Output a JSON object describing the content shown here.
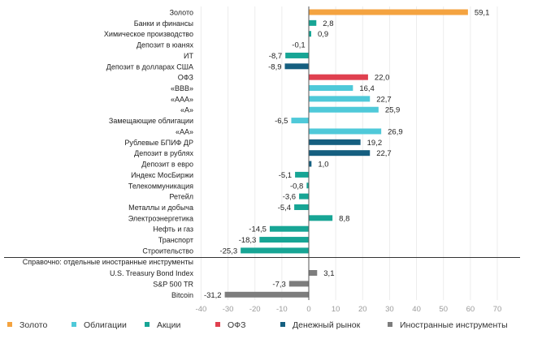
{
  "chart_data": {
    "type": "bar",
    "orientation": "horizontal",
    "xlim": [
      -40,
      70
    ],
    "xticks": [
      -40,
      -30,
      -20,
      -10,
      0,
      10,
      20,
      30,
      40,
      50,
      60,
      70
    ],
    "grid": true,
    "legend_position": "bottom",
    "colors": {
      "gold": "#f4a340",
      "bonds": "#4fc9d9",
      "stocks": "#17a595",
      "ofz": "#e0404f",
      "money": "#155f80",
      "foreign": "#7d7d7d"
    },
    "legend": [
      {
        "key": "gold",
        "label": "Золото"
      },
      {
        "key": "bonds",
        "label": "Облигации"
      },
      {
        "key": "stocks",
        "label": "Акции"
      },
      {
        "key": "ofz",
        "label": "ОФЗ"
      },
      {
        "key": "money",
        "label": "Денежный рынок"
      },
      {
        "key": "foreign",
        "label": "Иностранные инструменты"
      }
    ],
    "bars": [
      {
        "label": "Золото",
        "value": 59.1,
        "value_label": "59,1",
        "group": "gold"
      },
      {
        "label": "Банки и финансы",
        "value": 2.8,
        "value_label": "2,8",
        "group": "stocks"
      },
      {
        "label": "Химическое производство",
        "value": 0.9,
        "value_label": "0,9",
        "group": "stocks"
      },
      {
        "label": "Депозит в юанях",
        "value": -0.1,
        "value_label": "-0,1",
        "group": "money"
      },
      {
        "label": "ИТ",
        "value": -8.7,
        "value_label": "-8,7",
        "group": "stocks"
      },
      {
        "label": "Депозит в долларах США",
        "value": -8.9,
        "value_label": "-8,9",
        "group": "money"
      },
      {
        "label": "ОФЗ",
        "value": 22.0,
        "value_label": "22,0",
        "group": "ofz"
      },
      {
        "label": "«BBB»",
        "value": 16.4,
        "value_label": "16,4",
        "group": "bonds"
      },
      {
        "label": "«AAA»",
        "value": 22.7,
        "value_label": "22,7",
        "group": "bonds"
      },
      {
        "label": "«A»",
        "value": 25.9,
        "value_label": "25,9",
        "group": "bonds"
      },
      {
        "label": "Замещающие облигации",
        "value": -6.5,
        "value_label": "-6,5",
        "group": "bonds"
      },
      {
        "label": "«AA»",
        "value": 26.9,
        "value_label": "26,9",
        "group": "bonds"
      },
      {
        "label": "Рублевые БПИФ ДР",
        "value": 19.2,
        "value_label": "19,2",
        "group": "money"
      },
      {
        "label": "Депозит в рублях",
        "value": 22.7,
        "value_label": "22,7",
        "group": "money"
      },
      {
        "label": "Депозит в евро",
        "value": 1.0,
        "value_label": "1,0",
        "group": "money"
      },
      {
        "label": "Индекс МосБиржи",
        "value": -5.1,
        "value_label": "-5,1",
        "group": "stocks"
      },
      {
        "label": "Телекоммуникация",
        "value": -0.8,
        "value_label": "-0,8",
        "group": "stocks"
      },
      {
        "label": "Ретейл",
        "value": -3.6,
        "value_label": "-3,6",
        "group": "stocks"
      },
      {
        "label": "Металлы и добыча",
        "value": -5.4,
        "value_label": "-5,4",
        "group": "stocks"
      },
      {
        "label": "Электроэнергетика",
        "value": 8.8,
        "value_label": "8,8",
        "group": "stocks"
      },
      {
        "label": "Нефть и газ",
        "value": -14.5,
        "value_label": "-14,5",
        "group": "stocks"
      },
      {
        "label": "Транспорт",
        "value": -18.3,
        "value_label": "-18,3",
        "group": "stocks"
      },
      {
        "label": "Строительство",
        "value": -25.3,
        "value_label": "-25,3",
        "group": "stocks"
      }
    ],
    "reference_header": "Справочно: отдельные иностранные инструменты",
    "reference_bars": [
      {
        "label": "U.S. Treasury Bond Index",
        "value": 3.1,
        "value_label": "3,1",
        "group": "foreign"
      },
      {
        "label": "S&P 500 TR",
        "value": -7.3,
        "value_label": "-7,3",
        "group": "foreign"
      },
      {
        "label": "Bitcoin",
        "value": -31.2,
        "value_label": "-31,2",
        "group": "foreign"
      }
    ]
  }
}
